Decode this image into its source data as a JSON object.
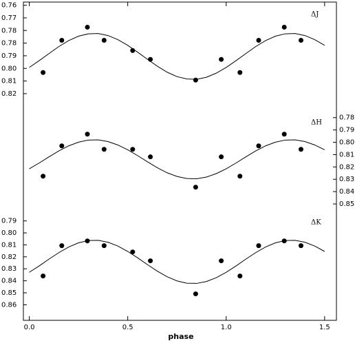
{
  "chart_data": [
    {
      "type": "scatter",
      "annotation": "ΔJ",
      "y_axis_side": "left",
      "y_inverted": true,
      "xlim": [
        -0.03,
        1.56
      ],
      "ylim": [
        0.758,
        0.8265
      ],
      "yticks": [
        0.76,
        {
          "value": 0.768,
          "label": "0.77"
        },
        {
          "value": 0.776,
          "label": "0.78"
        },
        {
          "value": 0.784,
          "label": "0.78"
        },
        {
          "value": 0.792,
          "label": "0.79"
        },
        {
          "value": 0.8,
          "label": "0.80"
        },
        {
          "value": 0.808,
          "label": "0.81"
        },
        {
          "value": 0.816,
          "label": "0.82"
        }
      ],
      "series": [
        {
          "type": "scatter",
          "color": "#000000",
          "x": [
            0.07,
            0.165,
            0.295,
            0.38,
            0.525,
            0.615,
            0.845,
            0.975,
            1.07,
            1.165,
            1.295,
            1.38
          ],
          "values": [
            0.8026,
            0.7822,
            0.7739,
            0.7822,
            0.7887,
            0.7943,
            0.8074,
            0.7943,
            0.8026,
            0.7822,
            0.7739,
            0.7822
          ]
        },
        {
          "type": "line",
          "color": "#000000",
          "x": [
            0,
            0.05,
            0.1,
            0.15,
            0.2,
            0.25,
            0.3,
            0.35,
            0.4,
            0.45,
            0.5,
            0.55,
            0.6,
            0.65,
            0.7,
            0.75,
            0.8,
            0.85,
            0.9,
            0.95,
            1,
            1.05,
            1.1,
            1.15,
            1.2,
            1.25,
            1.3,
            1.35,
            1.4,
            1.45,
            1.5
          ],
          "values": [
            0.7994,
            0.7951,
            0.7906,
            0.7862,
            0.7824,
            0.7796,
            0.7781,
            0.7779,
            0.7792,
            0.7818,
            0.7854,
            0.7897,
            0.7942,
            0.7986,
            0.8024,
            0.8052,
            0.8067,
            0.8069,
            0.8056,
            0.803,
            0.7994,
            0.7951,
            0.7906,
            0.7862,
            0.7824,
            0.7796,
            0.7781,
            0.7779,
            0.7792,
            0.7818,
            0.7854
          ]
        }
      ]
    },
    {
      "type": "scatter",
      "annotation": "ΔH",
      "y_axis_side": "right",
      "y_inverted": true,
      "xlim": [
        -0.03,
        1.56
      ],
      "ylim": [
        0.774,
        0.855
      ],
      "yticks": [
        0.78,
        0.79,
        {
          "value": 0.8,
          "label": "0.80"
        },
        0.81,
        0.82,
        0.83,
        0.84,
        0.85
      ],
      "series": [
        {
          "type": "scatter",
          "color": "#000000",
          "x": [
            0.07,
            0.165,
            0.295,
            0.38,
            0.525,
            0.615,
            0.845,
            0.975,
            1.07,
            1.165,
            1.295,
            1.38
          ],
          "values": [
            0.8275,
            0.8029,
            0.7934,
            0.8057,
            0.8057,
            0.8118,
            0.8364,
            0.8118,
            0.8275,
            0.8029,
            0.7934,
            0.8057
          ]
        },
        {
          "type": "line",
          "color": "#000000",
          "x": [
            0,
            0.05,
            0.1,
            0.15,
            0.2,
            0.25,
            0.3,
            0.35,
            0.4,
            0.45,
            0.5,
            0.55,
            0.6,
            0.65,
            0.7,
            0.75,
            0.8,
            0.85,
            0.9,
            0.95,
            1,
            1.05,
            1.1,
            1.15,
            1.2,
            1.25,
            1.3,
            1.35,
            1.4,
            1.45,
            1.5
          ],
          "values": [
            0.8215,
            0.8168,
            0.8118,
            0.807,
            0.8029,
            0.7999,
            0.7982,
            0.798,
            0.7994,
            0.8022,
            0.8061,
            0.8108,
            0.8158,
            0.8206,
            0.8247,
            0.8277,
            0.8294,
            0.8296,
            0.8282,
            0.8254,
            0.8215,
            0.8168,
            0.8118,
            0.807,
            0.8029,
            0.7999,
            0.7982,
            0.798,
            0.7994,
            0.8022,
            0.8061
          ]
        }
      ]
    },
    {
      "type": "scatter",
      "annotation": "ΔK",
      "y_axis_side": "left",
      "y_inverted": true,
      "xlim": [
        -0.03,
        1.56
      ],
      "ylim": [
        0.781,
        0.873
      ],
      "xticks": [
        {
          "value": 0,
          "label": "0.0"
        },
        0.5,
        {
          "value": 1,
          "label": "1.0"
        },
        1.5
      ],
      "xlabel": "phase",
      "yticks": [
        0.79,
        {
          "value": 0.8,
          "label": "0.80"
        },
        0.81,
        0.82,
        0.83,
        0.84,
        0.85,
        0.86
      ],
      "series": [
        {
          "type": "scatter",
          "color": "#000000",
          "x": [
            0.07,
            0.165,
            0.295,
            0.38,
            0.525,
            0.615,
            0.845,
            0.975,
            1.07,
            1.165,
            1.295,
            1.38
          ],
          "values": [
            0.836,
            0.8107,
            0.8067,
            0.8107,
            0.8159,
            0.8233,
            0.8509,
            0.8233,
            0.836,
            0.8107,
            0.8067,
            0.8107
          ]
        },
        {
          "type": "line",
          "color": "#000000",
          "x": [
            0,
            0.05,
            0.1,
            0.15,
            0.2,
            0.25,
            0.3,
            0.35,
            0.4,
            0.45,
            0.5,
            0.55,
            0.6,
            0.65,
            0.7,
            0.75,
            0.8,
            0.85,
            0.9,
            0.95,
            1,
            1.05,
            1.1,
            1.15,
            1.2,
            1.25,
            1.3,
            1.35,
            1.4,
            1.45,
            1.5
          ],
          "values": [
            0.8329,
            0.8276,
            0.8219,
            0.8165,
            0.8118,
            0.8083,
            0.8064,
            0.8062,
            0.8078,
            0.811,
            0.8155,
            0.8208,
            0.8265,
            0.8319,
            0.8366,
            0.8401,
            0.842,
            0.8422,
            0.8406,
            0.8374,
            0.8329,
            0.8276,
            0.8219,
            0.8165,
            0.8118,
            0.8083,
            0.8064,
            0.8062,
            0.8078,
            0.811,
            0.8155
          ]
        }
      ]
    }
  ]
}
